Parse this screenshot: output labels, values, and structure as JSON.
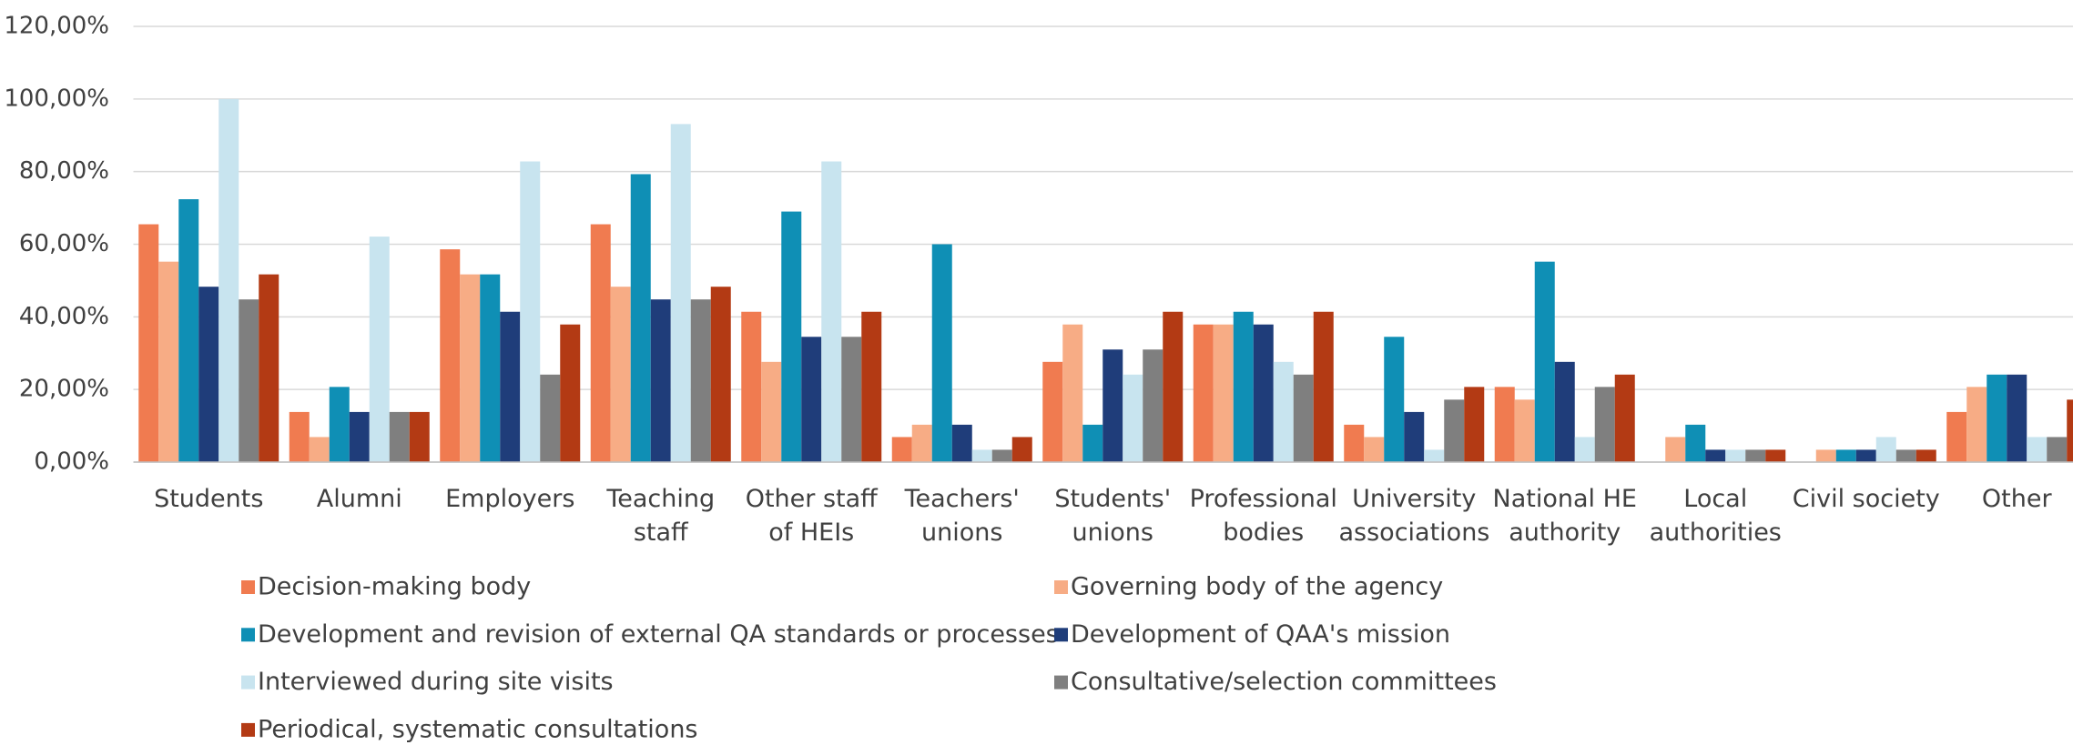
{
  "chart_data": {
    "type": "bar",
    "categories": [
      "Students",
      "Alumni",
      "Employers",
      "Teaching staff",
      "Other staff of HEIs",
      "Teachers' unions",
      "Students' unions",
      "Professional bodies",
      "University associations",
      "National HE authority",
      "Local authorities",
      "Civil society",
      "Other"
    ],
    "series": [
      {
        "name": "Decision-making body",
        "color": "#f07b50",
        "values": [
          65.5,
          13.8,
          58.6,
          65.5,
          41.4,
          6.9,
          27.6,
          37.9,
          10.3,
          20.7,
          0,
          0,
          13.8
        ]
      },
      {
        "name": "Governing body of the agency",
        "color": "#f7ac85",
        "values": [
          55.2,
          6.9,
          51.7,
          48.3,
          27.6,
          10.3,
          37.9,
          37.9,
          6.9,
          17.2,
          6.9,
          3.4,
          20.7
        ]
      },
      {
        "name": "Development and revision of external QA standards or processes",
        "color": "#0f8fb5",
        "values": [
          72.4,
          20.7,
          51.7,
          79.3,
          69.0,
          60.0,
          10.3,
          41.4,
          34.5,
          55.2,
          10.3,
          3.4,
          24.1
        ]
      },
      {
        "name": "Development of QAA's mission",
        "color": "#1f3d7a",
        "values": [
          48.3,
          13.8,
          41.4,
          44.8,
          34.5,
          10.3,
          31.0,
          37.9,
          13.8,
          27.6,
          3.4,
          3.4,
          24.1
        ]
      },
      {
        "name": "Interviewed during site visits",
        "color": "#c8e4ef",
        "values": [
          100,
          62.1,
          82.8,
          93.1,
          82.8,
          3.4,
          24.1,
          27.6,
          3.4,
          6.9,
          3.4,
          6.9,
          6.9
        ]
      },
      {
        "name": "Consultative/selection committees",
        "color": "#7f7f7f",
        "values": [
          44.8,
          13.8,
          24.1,
          44.8,
          34.5,
          3.4,
          31.0,
          24.1,
          17.2,
          20.7,
          3.4,
          3.4,
          6.9
        ]
      },
      {
        "name": "Periodical, systematic consultations",
        "color": "#b33a14",
        "values": [
          51.7,
          13.8,
          37.9,
          48.3,
          41.4,
          6.9,
          41.4,
          41.4,
          20.7,
          24.1,
          3.4,
          3.4,
          17.2
        ]
      }
    ],
    "ylim": [
      0,
      120
    ],
    "yticks": [
      {
        "value": 0,
        "label": "0,00%"
      },
      {
        "value": 20,
        "label": "20,00%"
      },
      {
        "value": 40,
        "label": "40,00%"
      },
      {
        "value": 60,
        "label": "60,00%"
      },
      {
        "value": 80,
        "label": "80,00%"
      },
      {
        "value": 100,
        "label": "100,00%"
      },
      {
        "value": 120,
        "label": "120,00%"
      }
    ],
    "grid": true,
    "legend": "bottom"
  }
}
